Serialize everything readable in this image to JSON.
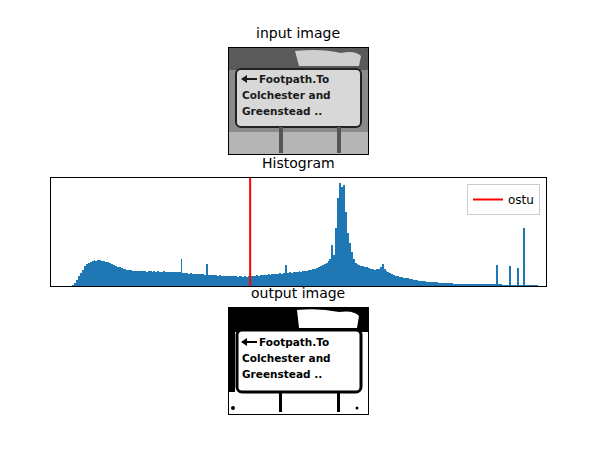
{
  "chart_data": {
    "type": "histogram",
    "title": "Histogram",
    "bins": [
      0,
      1,
      2,
      3,
      4,
      5,
      6,
      7,
      8,
      9,
      10,
      11,
      12,
      13,
      14,
      15,
      16,
      17,
      18,
      19,
      20,
      21,
      22,
      23,
      24,
      25,
      26,
      27,
      28,
      29,
      30,
      31,
      32,
      33,
      34,
      35,
      36,
      37,
      38,
      39,
      40,
      41,
      42,
      43,
      44,
      45,
      46,
      47,
      48,
      49,
      50,
      51,
      52,
      53,
      54,
      55,
      56,
      57,
      58,
      59,
      60,
      61,
      62,
      63,
      64,
      65,
      66,
      67,
      68,
      69,
      70,
      71,
      72,
      73,
      74,
      75,
      76,
      77,
      78,
      79,
      80,
      81,
      82,
      83,
      84,
      85,
      86,
      87,
      88,
      89,
      90,
      91,
      92,
      93,
      94,
      95,
      96,
      97,
      98,
      99,
      100,
      101,
      102,
      103,
      104,
      105,
      106,
      107,
      108,
      109,
      110,
      111,
      112,
      113,
      114,
      115,
      116,
      117,
      118,
      119,
      120,
      121,
      122,
      123,
      124,
      125,
      126,
      127,
      128,
      129,
      130,
      131,
      132,
      133,
      134,
      135,
      136,
      137,
      138,
      139,
      140,
      141,
      142,
      143,
      144,
      145,
      146,
      147,
      148,
      149,
      150,
      151,
      152,
      153,
      154,
      155,
      156,
      157,
      158,
      159,
      160,
      161,
      162,
      163,
      164,
      165,
      166,
      167,
      168,
      169,
      170,
      171,
      172,
      173,
      174,
      175,
      176,
      177,
      178,
      179,
      180,
      181,
      182,
      183,
      184,
      185,
      186,
      187,
      188,
      189,
      190,
      191,
      192,
      193,
      194,
      195,
      196,
      197,
      198,
      199,
      200,
      201,
      202,
      203,
      204,
      205,
      206,
      207,
      208,
      209,
      210,
      211,
      212,
      213,
      214,
      215,
      216,
      217,
      218,
      219,
      220,
      221,
      222,
      223,
      224,
      225,
      226,
      227,
      228,
      229,
      230,
      231,
      232,
      233,
      234,
      235,
      236,
      237,
      238,
      239,
      240,
      241,
      242,
      243,
      244,
      245,
      246,
      247,
      248,
      249,
      250,
      251,
      252,
      253,
      254,
      255,
      256
    ],
    "counts": [
      0,
      0,
      0,
      0,
      0,
      0,
      0,
      0,
      0,
      0,
      0,
      10,
      30,
      60,
      100,
      130,
      160,
      190,
      210,
      220,
      235,
      245,
      250,
      240,
      255,
      250,
      245,
      240,
      235,
      230,
      225,
      215,
      205,
      190,
      185,
      180,
      175,
      170,
      165,
      160,
      160,
      155,
      150,
      150,
      150,
      150,
      145,
      150,
      145,
      140,
      145,
      150,
      140,
      145,
      140,
      145,
      140,
      140,
      145,
      140,
      135,
      140,
      140,
      135,
      140,
      135,
      140,
      265,
      130,
      125,
      125,
      120,
      125,
      120,
      115,
      120,
      115,
      120,
      115,
      110,
      215,
      110,
      110,
      105,
      110,
      105,
      100,
      105,
      100,
      100,
      95,
      100,
      95,
      95,
      100,
      95,
      90,
      95,
      95,
      90,
      95,
      90,
      95,
      95,
      100,
      100,
      105,
      100,
      105,
      110,
      105,
      110,
      115,
      110,
      115,
      120,
      115,
      120,
      125,
      120,
      125,
      200,
      130,
      135,
      130,
      140,
      135,
      140,
      145,
      140,
      150,
      145,
      150,
      155,
      160,
      165,
      170,
      175,
      180,
      190,
      200,
      210,
      220,
      240,
      260,
      400,
      300,
      560,
      860,
      1000,
      960,
      980,
      720,
      520,
      420,
      330,
      260,
      220,
      210,
      200,
      195,
      190,
      185,
      180,
      175,
      170,
      165,
      160,
      165,
      170,
      180,
      210,
      170,
      150,
      140,
      130,
      120,
      110,
      100,
      95,
      90,
      85,
      80,
      80,
      75,
      70,
      65,
      60,
      60,
      55,
      50,
      50,
      45,
      45,
      40,
      40,
      40,
      35,
      35,
      35,
      30,
      30,
      28,
      28,
      26,
      26,
      25,
      25,
      24,
      24,
      22,
      22,
      22,
      20,
      20,
      20,
      20,
      20,
      18,
      18,
      18,
      18,
      18,
      16,
      16,
      16,
      16,
      16,
      15,
      15,
      205,
      15,
      15,
      14,
      14,
      14,
      14,
      195,
      14,
      12,
      12,
      175,
      12,
      12,
      565,
      10,
      10,
      8,
      8,
      6,
      6,
      5,
      4,
      3,
      2,
      0
    ],
    "color": "#1f77b4",
    "xlim": [
      0,
      256
    ],
    "ylim": [
      0,
      1050
    ],
    "tick_labels": false,
    "grid": false,
    "legend": "upper right",
    "threshold": {
      "name": "ostu",
      "value": 103,
      "color": "#ff0000"
    }
  },
  "input_image": {
    "title": "input image",
    "style": "grayscale",
    "sign_text": [
      "Footpath.To",
      "Colchester and",
      "Greenstead .."
    ]
  },
  "output_image": {
    "title": "output image",
    "style": "binary",
    "sign_text": [
      "Footpath.To",
      "Colchester and",
      "Greenstead .."
    ]
  }
}
